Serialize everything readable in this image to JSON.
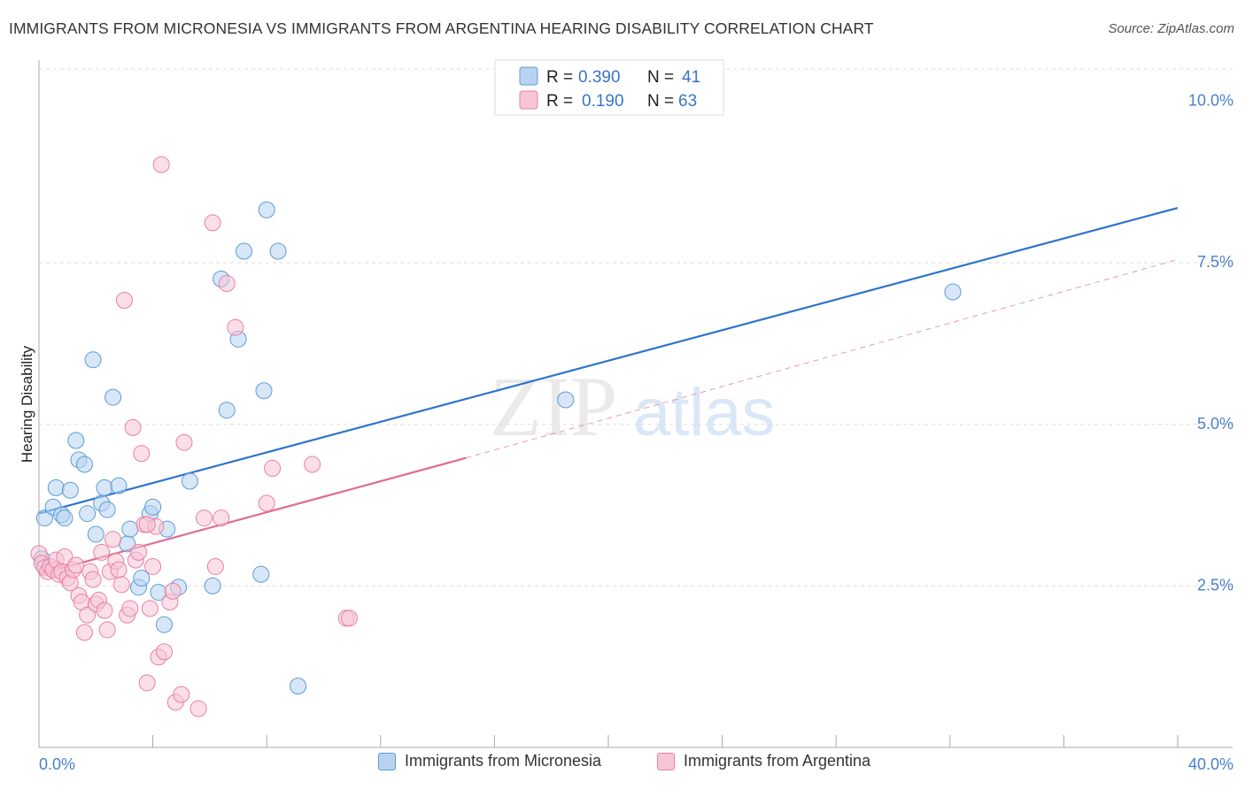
{
  "title": "IMMIGRANTS FROM MICRONESIA VS IMMIGRANTS FROM ARGENTINA HEARING DISABILITY CORRELATION CHART",
  "source": "Source: ZipAtlas.com",
  "watermark": {
    "zip": "ZIP",
    "atlas": "atlas"
  },
  "colors": {
    "blue": "#5b9bd5",
    "blue_fill": "#b8d3f2",
    "blue_line": "#2b74cc",
    "pink": "#e87fa3",
    "pink_fill": "#f7c5d6",
    "pink_line": "#e06c94",
    "tick_label": "#4a7fcf"
  },
  "legend": {
    "rows": [
      {
        "r_label": "R =",
        "r_value": "0.390",
        "n_label": "N =",
        "n_value": "41",
        "series": "micronesia"
      },
      {
        "r_label": "R =",
        "r_value": "0.190",
        "n_label": "N =",
        "n_value": "63",
        "series": "argentina"
      }
    ]
  },
  "bottom_legend": [
    {
      "label": "Immigrants from Micronesia",
      "series": "micronesia"
    },
    {
      "label": "Immigrants from Argentina",
      "series": "argentina"
    }
  ],
  "chart_data": {
    "type": "scatter",
    "title": "IMMIGRANTS FROM MICRONESIA VS IMMIGRANTS FROM ARGENTINA HEARING DISABILITY CORRELATION CHART",
    "xlabel": "",
    "ylabel": "Hearing Disability",
    "xlim": [
      0,
      40
    ],
    "ylim": [
      0,
      10.5
    ],
    "x_tick_labels": [
      "0.0%",
      "40.0%"
    ],
    "y_ticks": [
      2.5,
      5.0,
      7.5,
      10.0
    ],
    "y_tick_labels": [
      "2.5%",
      "5.0%",
      "7.5%",
      "10.0%"
    ],
    "grid": "horizontal dashed",
    "legend_position": "top-center",
    "series": [
      {
        "name": "Immigrants from Micronesia",
        "color": "#5b9bd5",
        "r": 0.39,
        "n": 41,
        "trend": {
          "x": [
            0,
            40
          ],
          "y": [
            3.62,
            8.35
          ],
          "style": "solid"
        },
        "points": [
          [
            0.2,
            3.55
          ],
          [
            0.5,
            3.72
          ],
          [
            0.6,
            4.02
          ],
          [
            0.8,
            3.6
          ],
          [
            0.9,
            3.55
          ],
          [
            1.1,
            3.98
          ],
          [
            1.3,
            4.75
          ],
          [
            1.4,
            4.45
          ],
          [
            1.6,
            4.38
          ],
          [
            1.7,
            3.62
          ],
          [
            1.9,
            6.0
          ],
          [
            2.0,
            3.3
          ],
          [
            2.2,
            3.78
          ],
          [
            2.3,
            4.02
          ],
          [
            2.4,
            3.68
          ],
          [
            2.6,
            5.42
          ],
          [
            2.8,
            4.05
          ],
          [
            3.1,
            3.15
          ],
          [
            3.2,
            3.38
          ],
          [
            3.5,
            2.48
          ],
          [
            3.6,
            2.62
          ],
          [
            3.9,
            3.62
          ],
          [
            4.0,
            3.72
          ],
          [
            4.2,
            2.4
          ],
          [
            4.4,
            1.9
          ],
          [
            4.5,
            3.38
          ],
          [
            4.9,
            2.48
          ],
          [
            5.3,
            4.12
          ],
          [
            6.1,
            2.5
          ],
          [
            6.4,
            7.25
          ],
          [
            6.6,
            5.22
          ],
          [
            7.0,
            6.32
          ],
          [
            7.2,
            7.68
          ],
          [
            7.8,
            2.68
          ],
          [
            7.9,
            5.52
          ],
          [
            8.0,
            8.32
          ],
          [
            8.4,
            7.68
          ],
          [
            9.1,
            0.95
          ],
          [
            18.5,
            5.38
          ],
          [
            32.1,
            7.05
          ],
          [
            0.1,
            2.92
          ]
        ]
      },
      {
        "name": "Immigrants from Argentina",
        "color": "#e87fa3",
        "r": 0.19,
        "n": 63,
        "trend": {
          "x": [
            0,
            15
          ],
          "y": [
            2.68,
            4.48
          ],
          "style": "solid",
          "extended": {
            "x": [
              15,
              40
            ],
            "y": [
              4.48,
              7.55
            ],
            "style": "dashed"
          }
        },
        "points": [
          [
            0.0,
            3.0
          ],
          [
            0.1,
            2.85
          ],
          [
            0.2,
            2.78
          ],
          [
            0.3,
            2.72
          ],
          [
            0.4,
            2.8
          ],
          [
            0.5,
            2.75
          ],
          [
            0.6,
            2.9
          ],
          [
            0.7,
            2.68
          ],
          [
            0.8,
            2.72
          ],
          [
            0.9,
            2.95
          ],
          [
            1.0,
            2.62
          ],
          [
            1.1,
            2.55
          ],
          [
            1.2,
            2.75
          ],
          [
            1.3,
            2.82
          ],
          [
            1.4,
            2.35
          ],
          [
            1.5,
            2.25
          ],
          [
            1.6,
            1.78
          ],
          [
            1.7,
            2.05
          ],
          [
            1.8,
            2.72
          ],
          [
            1.9,
            2.6
          ],
          [
            2.0,
            2.22
          ],
          [
            2.1,
            2.28
          ],
          [
            2.2,
            3.02
          ],
          [
            2.3,
            2.12
          ],
          [
            2.4,
            1.82
          ],
          [
            2.5,
            2.72
          ],
          [
            2.6,
            3.22
          ],
          [
            2.7,
            2.88
          ],
          [
            2.8,
            2.75
          ],
          [
            2.9,
            2.52
          ],
          [
            3.0,
            6.92
          ],
          [
            3.1,
            2.05
          ],
          [
            3.2,
            2.15
          ],
          [
            3.3,
            4.95
          ],
          [
            3.4,
            2.9
          ],
          [
            3.5,
            3.02
          ],
          [
            3.6,
            4.55
          ],
          [
            3.7,
            3.45
          ],
          [
            3.8,
            1.0
          ],
          [
            3.9,
            2.15
          ],
          [
            4.0,
            2.8
          ],
          [
            4.1,
            3.42
          ],
          [
            4.2,
            1.4
          ],
          [
            4.3,
            9.02
          ],
          [
            4.4,
            1.48
          ],
          [
            4.6,
            2.25
          ],
          [
            4.7,
            2.42
          ],
          [
            4.8,
            0.7
          ],
          [
            5.0,
            0.82
          ],
          [
            5.1,
            4.72
          ],
          [
            5.6,
            0.6
          ],
          [
            5.8,
            3.55
          ],
          [
            6.1,
            8.12
          ],
          [
            6.2,
            2.8
          ],
          [
            6.4,
            3.55
          ],
          [
            6.6,
            7.18
          ],
          [
            6.9,
            6.5
          ],
          [
            8.0,
            3.78
          ],
          [
            8.2,
            4.32
          ],
          [
            9.6,
            4.38
          ],
          [
            10.8,
            2.0
          ],
          [
            10.9,
            2.0
          ],
          [
            3.8,
            3.45
          ]
        ]
      }
    ]
  }
}
